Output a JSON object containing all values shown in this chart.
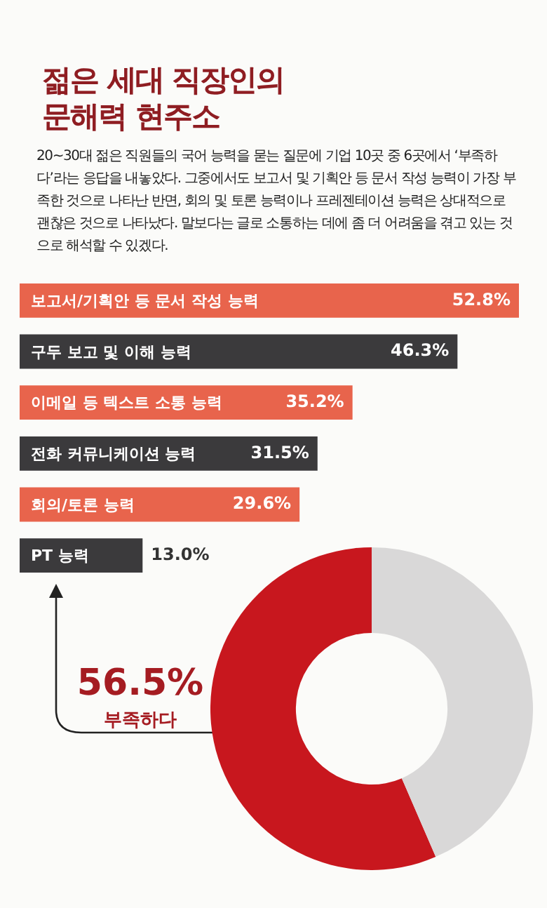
{
  "chart_data": [
    {
      "type": "bar",
      "orientation": "horizontal",
      "title": "젊은 세대 직장인의\n문해력 현주소",
      "subtitle": "20~30대 젊은 직원들의 국어 능력을 묻는 질문에 기업 10곳 중 6곳에서 ‘부족하다’라는 응답을 내놓았다. 그중에서도 보고서 및 기획안 등 문서 작성 능력이 가장 부족한 것으로 나타난 반면, 회의 및 토론 능력이나 프레젠테이션 능력은 상대적으로 괜찮은 것으로 나타났다. 말보다는 글로 소통하는 데에 좀 더 어려움을 겪고 있는 것으로 해석할 수 있겠다.",
      "categories": [
        "보고서/기획안 등 문서 작성 능력",
        "구두 보고 및 이해 능력",
        "이메일 등 텍스트 소통 능력",
        "전화 커뮤니케이션 능력",
        "회의/토론 능력",
        "PT 능력"
      ],
      "values": [
        52.8,
        46.3,
        35.2,
        31.5,
        29.6,
        13.0
      ],
      "value_labels": [
        "52.8%",
        "46.3%",
        "35.2%",
        "31.5%",
        "29.6%",
        "13.0%"
      ],
      "colors": [
        "#e8644c",
        "#3b3a3c",
        "#e8644c",
        "#3b3a3c",
        "#e8644c",
        "#3b3a3c"
      ],
      "legend": false
    },
    {
      "type": "donut",
      "categories": [
        "부족하다",
        null
      ],
      "values": [
        56.5,
        43.5
      ],
      "value_labels": [
        "56.5%",
        null
      ],
      "colors": [
        "#c8171e",
        "#d9d8d8"
      ],
      "legend": false
    }
  ]
}
